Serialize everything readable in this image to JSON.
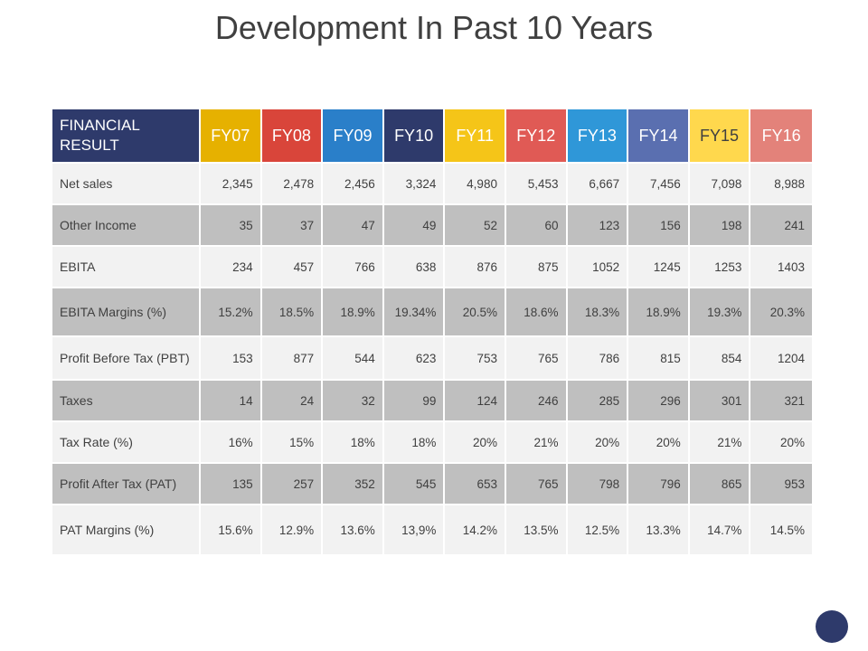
{
  "title": "Development In Past 10 Years",
  "header": {
    "label": "FINANCIAL RESULT",
    "years": [
      "FY07",
      "FY08",
      "FY09",
      "FY10",
      "FY11",
      "FY12",
      "FY13",
      "FY14",
      "FY15",
      "FY16"
    ],
    "colors": [
      "#e6b100",
      "#d9453a",
      "#2a7fc9",
      "#2e3a6b",
      "#f5c518",
      "#e05a55",
      "#2f97d8",
      "#5a6fb0",
      "#ffd84d",
      "#e3827a"
    ],
    "text_colors": [
      "#ffffff",
      "#ffffff",
      "#ffffff",
      "#ffffff",
      "#ffffff",
      "#ffffff",
      "#ffffff",
      "#ffffff",
      "#404040",
      "#ffffff"
    ]
  },
  "rows": [
    {
      "label": "Net sales",
      "values": [
        "2,345",
        "2,478",
        "2,456",
        "3,324",
        "4,980",
        "5,453",
        "6,667",
        "7,456",
        "7,098",
        "8,988"
      ]
    },
    {
      "label": "Other Income",
      "values": [
        "35",
        "37",
        "47",
        "49",
        "52",
        "60",
        "123",
        "156",
        "198",
        "241"
      ]
    },
    {
      "label": "EBITA",
      "values": [
        "234",
        "457",
        "766",
        "638",
        "876",
        "875",
        "1052",
        "1245",
        "1253",
        "1403"
      ]
    },
    {
      "label": "EBITA Margins (%)",
      "values": [
        "15.2%",
        "18.5%",
        "18.9%",
        "19.34%",
        "20.5%",
        "18.6%",
        "18.3%",
        "18.9%",
        "19.3%",
        "20.3%"
      ]
    },
    {
      "label": "Profit Before Tax (PBT)",
      "values": [
        "153",
        "877",
        "544",
        "623",
        "753",
        "765",
        "786",
        "815",
        "854",
        "1204"
      ]
    },
    {
      "label": "Taxes",
      "values": [
        "14",
        "24",
        "32",
        "99",
        "124",
        "246",
        "285",
        "296",
        "301",
        "321"
      ]
    },
    {
      "label": "Tax Rate (%)",
      "values": [
        "16%",
        "15%",
        "18%",
        "18%",
        "20%",
        "21%",
        "20%",
        "20%",
        "21%",
        "20%"
      ]
    },
    {
      "label": "Profit After Tax (PAT)",
      "values": [
        "135",
        "257",
        "352",
        "545",
        "653",
        "765",
        "798",
        "796",
        "865",
        "953"
      ]
    },
    {
      "label": "PAT Margins (%)",
      "values": [
        "15.6%",
        "12.9%",
        "13.6%",
        "13,9%",
        "14.2%",
        "13.5%",
        "12.5%",
        "13.3%",
        "14.7%",
        "14.5%"
      ]
    }
  ]
}
